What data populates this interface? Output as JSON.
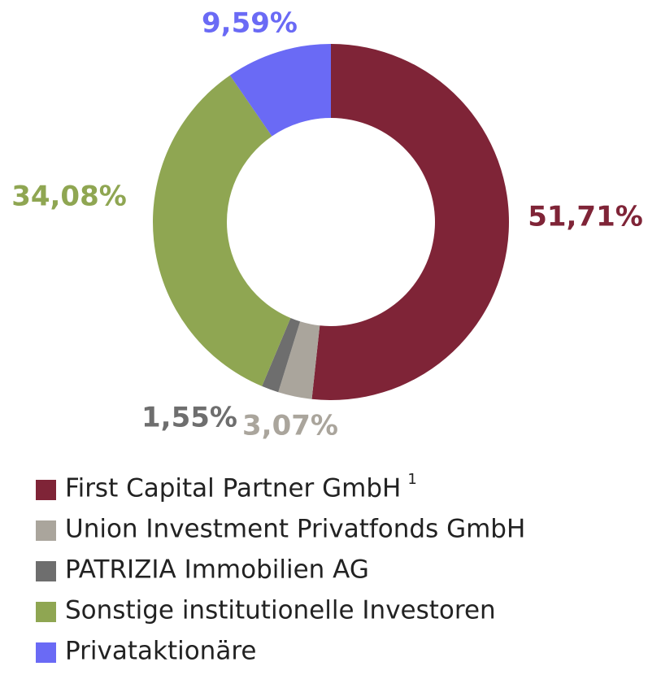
{
  "chart_data": {
    "type": "donut",
    "categories": [
      "First Capital Partner GmbH",
      "Union Investment Privatfonds GmbH",
      "PATRIZIA Immobilien AG",
      "Sonstige institutionelle Investoren",
      "Privataktionäre"
    ],
    "legend_footnotes": [
      "1",
      null,
      null,
      null,
      null
    ],
    "values": [
      51.71,
      3.07,
      1.55,
      34.08,
      9.59
    ],
    "value_labels": [
      "51,71%",
      "3,07%",
      "1,55%",
      "34,08%",
      "9,59%"
    ],
    "colors": [
      "#7f2437",
      "#aaa59c",
      "#6e6e6e",
      "#8fa652",
      "#6a6af5"
    ]
  }
}
